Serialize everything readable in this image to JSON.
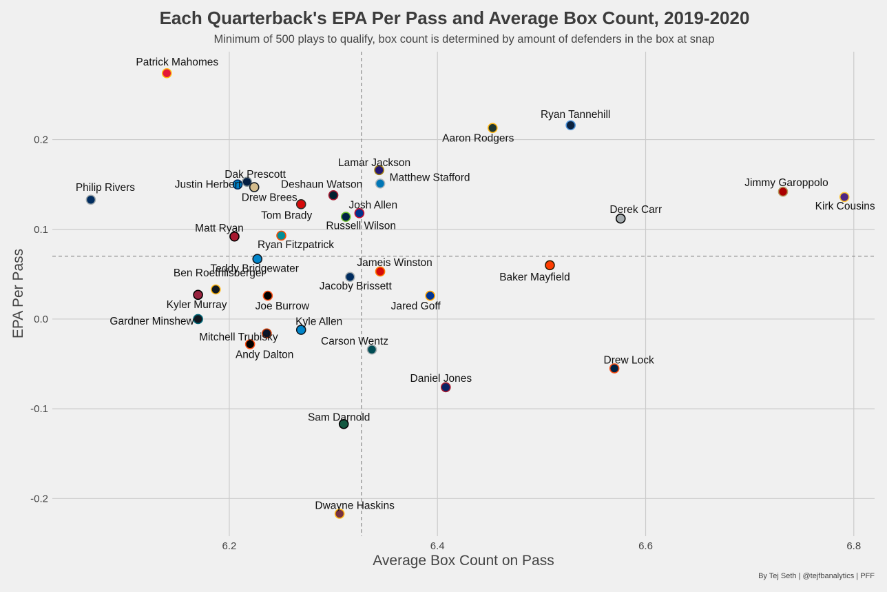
{
  "chart_data": {
    "type": "scatter",
    "title": "Each Quarterback's EPA Per Pass and Average Box Count, 2019-2020",
    "subtitle": "Minimum of 500 plays to qualify, box count is determined by amount of defenders in the box at snap",
    "xlabel": "Average Box Count on Pass",
    "ylabel": "EPA Per Pass",
    "xlim": [
      6.03,
      6.82
    ],
    "ylim": [
      -0.242,
      0.298
    ],
    "x_ticks": [
      6.2,
      6.4,
      6.6,
      6.8
    ],
    "x_tick_labels": [
      "6.2",
      "6.4",
      "6.6",
      "6.8"
    ],
    "y_ticks": [
      0.2,
      0.1,
      0.0,
      -0.1,
      -0.2
    ],
    "y_tick_labels": [
      "0.2",
      "0.1",
      "0.0",
      "-0.1",
      "-0.2"
    ],
    "grid": true,
    "reference_lines": {
      "x_mean": 6.327,
      "y_mean": 0.07
    },
    "points": [
      {
        "name": "Patrick Mahomes",
        "x": 6.14,
        "y": 0.274,
        "color": "#e31837",
        "stroke": "#ffb612"
      },
      {
        "name": "Ryan Tannehill",
        "x": 6.528,
        "y": 0.216,
        "color": "#0c2340",
        "stroke": "#4b92db"
      },
      {
        "name": "Aaron Rodgers",
        "x": 6.453,
        "y": 0.213,
        "color": "#203731",
        "stroke": "#ffb612"
      },
      {
        "name": "Lamar Jackson",
        "x": 6.344,
        "y": 0.166,
        "color": "#241773",
        "stroke": "#9e7c0c"
      },
      {
        "name": "Matthew Stafford",
        "x": 6.345,
        "y": 0.151,
        "color": "#0076b6",
        "stroke": "#b0b7bc"
      },
      {
        "name": "Dak Prescott",
        "x": 6.217,
        "y": 0.153,
        "color": "#041e42",
        "stroke": "#869397"
      },
      {
        "name": "Justin Herbert",
        "x": 6.208,
        "y": 0.15,
        "color": "#0080c6",
        "stroke": "#002a5e"
      },
      {
        "name": "Drew Brees",
        "x": 6.224,
        "y": 0.147,
        "color": "#d3bc8d",
        "stroke": "#101820"
      },
      {
        "name": "Deshaun Watson",
        "x": 6.3,
        "y": 0.138,
        "color": "#03202f",
        "stroke": "#a71930"
      },
      {
        "name": "Philip Rivers",
        "x": 6.067,
        "y": 0.133,
        "color": "#002c5f",
        "stroke": "#a2aaad"
      },
      {
        "name": "Jimmy Garoppolo",
        "x": 6.732,
        "y": 0.142,
        "color": "#aa0000",
        "stroke": "#b3995d"
      },
      {
        "name": "Kirk Cousins",
        "x": 6.791,
        "y": 0.136,
        "color": "#4f2683",
        "stroke": "#ffc62f"
      },
      {
        "name": "Tom Brady",
        "x": 6.269,
        "y": 0.128,
        "color": "#d50a0a",
        "stroke": "#34302b"
      },
      {
        "name": "Josh Allen",
        "x": 6.325,
        "y": 0.118,
        "color": "#00338d",
        "stroke": "#c60c30"
      },
      {
        "name": "Russell Wilson",
        "x": 6.312,
        "y": 0.114,
        "color": "#002244",
        "stroke": "#69be28"
      },
      {
        "name": "Derek Carr",
        "x": 6.576,
        "y": 0.112,
        "color": "#a5acaf",
        "stroke": "#000000"
      },
      {
        "name": "Matt Ryan",
        "x": 6.205,
        "y": 0.092,
        "color": "#a71930",
        "stroke": "#000000"
      },
      {
        "name": "Ryan Fitzpatrick",
        "x": 6.25,
        "y": 0.093,
        "color": "#008e97",
        "stroke": "#fc4c02"
      },
      {
        "name": "Teddy Bridgewater",
        "x": 6.227,
        "y": 0.067,
        "color": "#0085ca",
        "stroke": "#101820"
      },
      {
        "name": "Baker Mayfield",
        "x": 6.508,
        "y": 0.06,
        "color": "#ff3c00",
        "stroke": "#311d00"
      },
      {
        "name": "Jameis Winston",
        "x": 6.345,
        "y": 0.053,
        "color": "#d50a0a",
        "stroke": "#ff7900"
      },
      {
        "name": "Jacoby Brissett",
        "x": 6.316,
        "y": 0.047,
        "color": "#002c5f",
        "stroke": "#a2aaad"
      },
      {
        "name": "Ben Roethlisberger",
        "x": 6.187,
        "y": 0.033,
        "color": "#101820",
        "stroke": "#ffb612"
      },
      {
        "name": "Kyler Murray",
        "x": 6.17,
        "y": 0.027,
        "color": "#97233f",
        "stroke": "#000000"
      },
      {
        "name": "Joe Burrow",
        "x": 6.237,
        "y": 0.026,
        "color": "#000000",
        "stroke": "#fb4f14"
      },
      {
        "name": "Jared Goff",
        "x": 6.393,
        "y": 0.026,
        "color": "#003594",
        "stroke": "#ffa300"
      },
      {
        "name": "Gardner Minshew",
        "x": 6.17,
        "y": 0.0,
        "color": "#101820",
        "stroke": "#006778"
      },
      {
        "name": "Kyle Allen",
        "x": 6.269,
        "y": -0.012,
        "color": "#0085ca",
        "stroke": "#101820"
      },
      {
        "name": "Mitchell Trubisky",
        "x": 6.236,
        "y": -0.016,
        "color": "#0b162a",
        "stroke": "#c83803"
      },
      {
        "name": "Andy Dalton",
        "x": 6.22,
        "y": -0.028,
        "color": "#000000",
        "stroke": "#fb4f14"
      },
      {
        "name": "Carson Wentz",
        "x": 6.337,
        "y": -0.034,
        "color": "#004c54",
        "stroke": "#a5acaf"
      },
      {
        "name": "Drew Lock",
        "x": 6.57,
        "y": -0.055,
        "color": "#002244",
        "stroke": "#fb4f14"
      },
      {
        "name": "Daniel Jones",
        "x": 6.408,
        "y": -0.076,
        "color": "#0b2265",
        "stroke": "#a71930"
      },
      {
        "name": "Sam Darnold",
        "x": 6.31,
        "y": -0.117,
        "color": "#125740",
        "stroke": "#000000"
      },
      {
        "name": "Dwayne Haskins",
        "x": 6.306,
        "y": -0.217,
        "color": "#773141",
        "stroke": "#ffb612"
      }
    ],
    "credit": "By Tej Seth | @tejfbanalytics | PFF"
  }
}
